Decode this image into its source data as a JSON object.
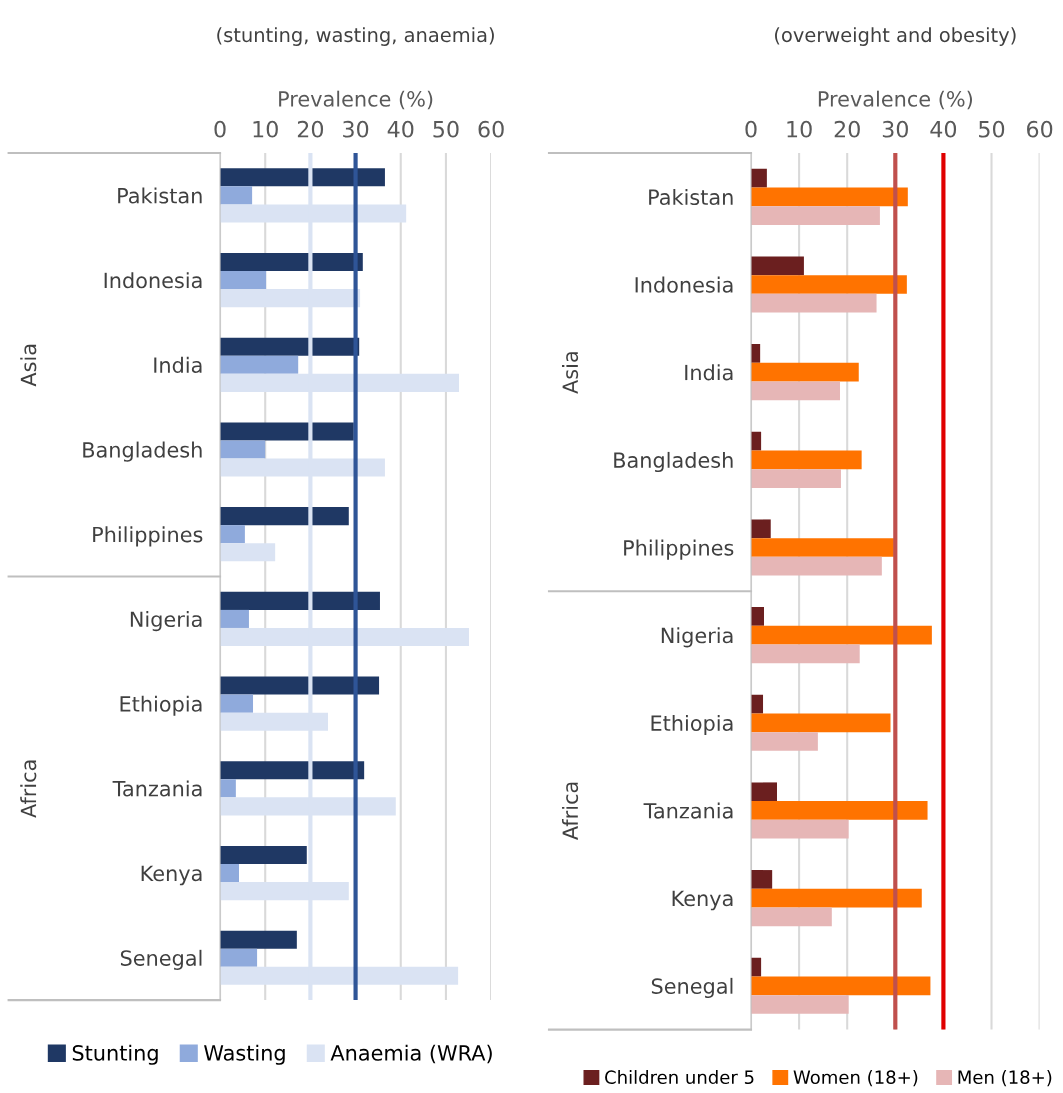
{
  "chart_data": [
    {
      "type": "bar",
      "orientation": "horizontal",
      "title": "(stunting, wasting, anaemia)",
      "xlabel": "Prevalence (%)",
      "categories": [
        "Pakistan",
        "Indonesia",
        "India",
        "Bangladesh",
        "Philippines",
        "Nigeria",
        "Ethiopia",
        "Tanzania",
        "Kenya",
        "Senegal"
      ],
      "series": [
        {
          "name": "Stunting",
          "color": "#1f3864",
          "values": [
            36.5,
            31.6,
            30.8,
            29.6,
            28.5,
            35.4,
            35.2,
            31.9,
            19.2,
            17.0
          ]
        },
        {
          "name": "Wasting",
          "color": "#8faadc",
          "values": [
            7.1,
            10.2,
            17.3,
            10.0,
            5.5,
            6.4,
            7.3,
            3.5,
            4.2,
            8.2
          ]
        },
        {
          "name": "Anaemia (WRA)",
          "color": "#dae3f3",
          "values": [
            41.2,
            31.0,
            52.9,
            36.5,
            12.2,
            55.1,
            23.9,
            38.9,
            28.5,
            52.7
          ]
        }
      ],
      "xlim": [
        0,
        60
      ],
      "xticks": [
        0,
        10,
        20,
        30,
        40,
        50,
        60
      ],
      "grid": "x",
      "legend": "bottom",
      "ref_lines": [
        {
          "axis": "x",
          "value": 20,
          "color": "#dae3f3"
        },
        {
          "axis": "x",
          "value": 30,
          "color": "#2f5597"
        }
      ],
      "annotations": [
        "Asia",
        "Africa"
      ]
    },
    {
      "type": "bar",
      "orientation": "horizontal",
      "title": "(overweight and obesity)",
      "xlabel": "Prevalence (%)",
      "categories": [
        "Pakistan",
        "Indonesia",
        "India",
        "Bangladesh",
        "Philippines",
        "Nigeria",
        "Ethiopia",
        "Tanzania",
        "Kenya",
        "Senegal"
      ],
      "series": [
        {
          "name": "Children under 5",
          "color": "#6b1f1f",
          "values": [
            3.3,
            11.0,
            1.9,
            2.1,
            4.1,
            2.7,
            2.5,
            5.4,
            4.4,
            2.1
          ]
        },
        {
          "name": "Women (18+)",
          "color": "#ff7300",
          "values": [
            32.6,
            32.4,
            22.4,
            23.0,
            29.7,
            37.6,
            29.0,
            36.7,
            35.5,
            37.3
          ]
        },
        {
          "name": "Men (18+)",
          "color": "#e6b6b6",
          "values": [
            26.8,
            26.1,
            18.5,
            18.7,
            27.2,
            22.6,
            13.9,
            20.3,
            16.8,
            20.3
          ]
        }
      ],
      "xlim": [
        0,
        60
      ],
      "xticks": [
        0,
        10,
        20,
        30,
        40,
        50,
        60
      ],
      "grid": "x",
      "legend": "bottom",
      "ref_lines": [
        {
          "axis": "x",
          "value": 30,
          "color": "#c0504d"
        },
        {
          "axis": "x",
          "value": 40,
          "color": "#e00000"
        }
      ],
      "annotations": [
        "Asia",
        "Africa"
      ]
    }
  ]
}
